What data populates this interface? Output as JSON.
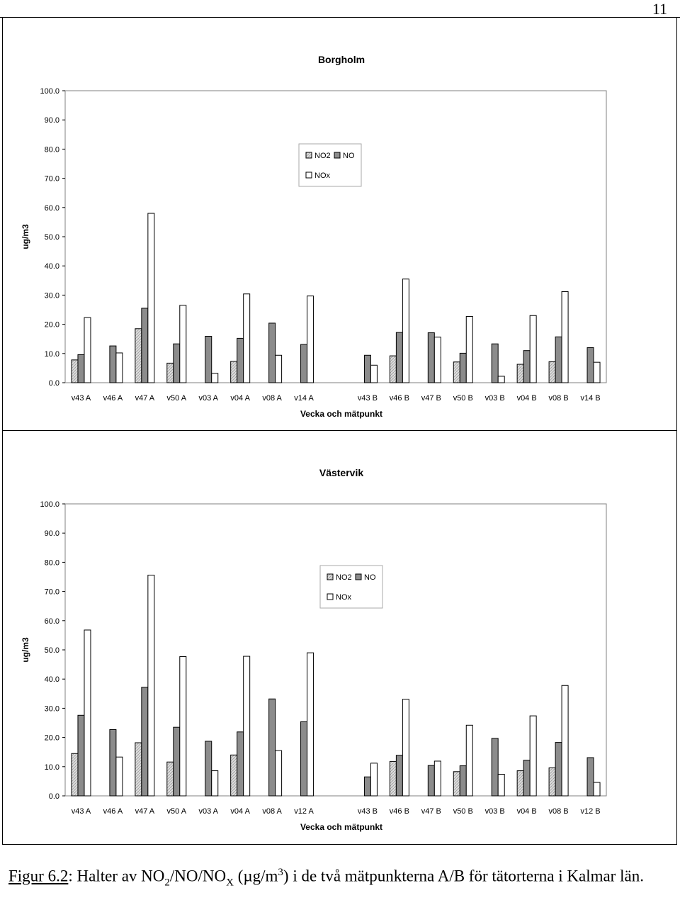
{
  "page_number": "11",
  "caption": {
    "figure_label": "Figur 6.2",
    "text_before": ": Halter av NO",
    "sub1": "2",
    "text_mid1": "/NO/NO",
    "sub2": "X",
    "text_mid2": " (µg/m",
    "sup1": "3",
    "text_after": ") i de två mätpunkterna A/B för tätorterna i Kalmar län."
  },
  "colors": {
    "NO2": "#dcdcdc",
    "NO": "#8c8c8c",
    "NOx": "#ffffff",
    "frame": "#000000",
    "plot_border": "#808080"
  },
  "chart_data": [
    {
      "type": "bar",
      "title": "Borgholm",
      "xlabel": "Vecka och mätpunkt",
      "ylabel": "ug/m3",
      "ylim": [
        0,
        100
      ],
      "yticks": [
        "0.0",
        "10.0",
        "20.0",
        "30.0",
        "40.0",
        "50.0",
        "60.0",
        "70.0",
        "80.0",
        "90.0",
        "100.0"
      ],
      "grid": false,
      "legend": {
        "placement": "top-center",
        "entries": [
          "NO2",
          "NO",
          "NOx"
        ]
      },
      "categories": [
        "v43 A",
        "v46 A",
        "v47 A",
        "v50 A",
        "v03 A",
        "v04 A",
        "v08 A",
        "v14 A",
        "",
        "v43 B",
        "v46 B",
        "v47 B",
        "v50 B",
        "v03 B",
        "v04 B",
        "v08 B",
        "v14 B"
      ],
      "series": [
        {
          "name": "NO2",
          "values": [
            7.8,
            0,
            18.5,
            6.7,
            0,
            7.3,
            0,
            0,
            null,
            0,
            9.2,
            0,
            7.1,
            0,
            6.3,
            7.2,
            0
          ]
        },
        {
          "name": "NO",
          "values": [
            9.6,
            12.6,
            25.5,
            13.3,
            15.9,
            15.2,
            20.4,
            13.1,
            null,
            9.4,
            17.2,
            17.1,
            10.1,
            13.3,
            11.0,
            15.7,
            12.0
          ]
        },
        {
          "name": "NOx",
          "values": [
            22.3,
            10.2,
            58.0,
            26.5,
            3.2,
            30.4,
            9.4,
            29.7,
            null,
            6.0,
            35.5,
            15.6,
            22.7,
            2.2,
            23.0,
            31.2,
            7.0
          ]
        }
      ],
      "series_order_note_hidden": null
    },
    {
      "type": "bar",
      "title": "Västervik",
      "xlabel": "Vecka och mätpunkt",
      "ylabel": "ug/m3",
      "ylim": [
        0,
        100
      ],
      "yticks": [
        "0.0",
        "10.0",
        "20.0",
        "30.0",
        "40.0",
        "50.0",
        "60.0",
        "70.0",
        "80.0",
        "90.0",
        "100.0"
      ],
      "grid": false,
      "legend": {
        "placement": "top-center",
        "entries": [
          "NO2",
          "NO",
          "NOx"
        ]
      },
      "categories": [
        "v43 A",
        "v46 A",
        "v47 A",
        "v50 A",
        "v03 A",
        "v04 A",
        "v08 A",
        "v12 A",
        "",
        "v43 B",
        "v46 B",
        "v47 B",
        "v50 B",
        "v03 B",
        "v04 B",
        "v08 B",
        "v12 B"
      ],
      "series": [
        {
          "name": "NO2",
          "values": [
            14.5,
            0,
            18.2,
            11.6,
            0,
            14.0,
            0,
            0,
            null,
            0,
            11.8,
            0,
            8.3,
            0,
            8.6,
            9.6,
            0
          ]
        },
        {
          "name": "NO",
          "values": [
            27.6,
            22.7,
            37.2,
            23.5,
            18.7,
            21.9,
            33.2,
            25.4,
            null,
            6.5,
            13.9,
            10.4,
            10.3,
            19.7,
            12.2,
            18.3,
            13.1
          ]
        },
        {
          "name": "NOx",
          "values": [
            56.8,
            13.3,
            75.6,
            47.7,
            8.6,
            47.8,
            15.5,
            49.0,
            null,
            11.2,
            33.1,
            11.9,
            24.2,
            7.4,
            27.4,
            37.8,
            4.6
          ]
        }
      ]
    }
  ]
}
